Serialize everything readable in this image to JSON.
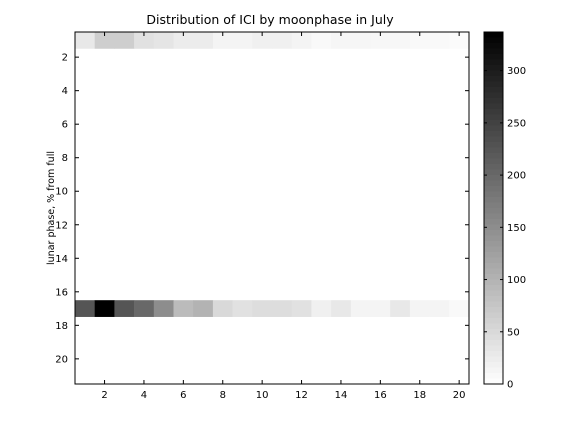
{
  "chart_data": {
    "type": "heatmap",
    "title": "Distribution of ICI by moonphase in July",
    "xlabel": "",
    "ylabel": "lunar phase, % from full",
    "x_ticks": [
      2,
      4,
      6,
      8,
      10,
      12,
      14,
      16,
      18,
      20
    ],
    "y_ticks": [
      2,
      4,
      6,
      8,
      10,
      12,
      14,
      16,
      18,
      20
    ],
    "xlim": [
      0.5,
      20.5
    ],
    "ylim": [
      0.5,
      21.5
    ],
    "y_direction": "reversed",
    "colormap": "gray-reversed",
    "clim": [
      0,
      337
    ],
    "colorbar_ticks": [
      0,
      50,
      100,
      150,
      200,
      250,
      300
    ],
    "colorbar_location": "right",
    "grid": false,
    "x": [
      1,
      2,
      3,
      4,
      5,
      6,
      7,
      8,
      9,
      10,
      11,
      12,
      13,
      14,
      15,
      16,
      17,
      18,
      19,
      20
    ],
    "rows": [
      {
        "y": 1,
        "values": [
          30,
          65,
          65,
          40,
          35,
          25,
          25,
          15,
          15,
          20,
          20,
          15,
          8,
          12,
          12,
          10,
          10,
          8,
          8,
          5
        ]
      },
      {
        "y": 17,
        "values": [
          225,
          337,
          225,
          200,
          150,
          90,
          100,
          50,
          40,
          45,
          45,
          40,
          20,
          30,
          15,
          15,
          30,
          15,
          15,
          8
        ]
      }
    ],
    "default_value": 0
  }
}
